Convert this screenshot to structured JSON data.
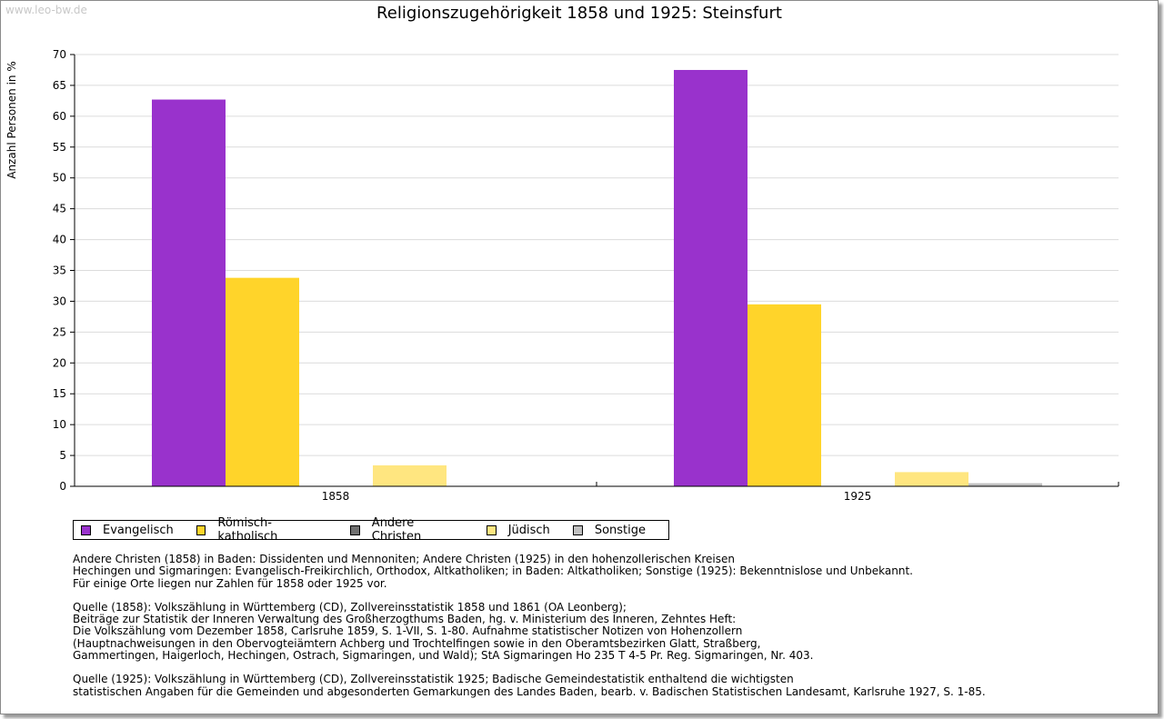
{
  "watermark": "www.leo-bw.de",
  "chart_data": {
    "type": "bar",
    "title": "Religionszugehörigkeit 1858 und 1925: Steinsfurt",
    "ylabel": "Anzahl Personen in %",
    "xlabel": "",
    "ylim": [
      0,
      70
    ],
    "yticks": [
      0,
      5,
      10,
      15,
      20,
      25,
      30,
      35,
      40,
      45,
      50,
      55,
      60,
      65,
      70
    ],
    "grid": true,
    "categories": [
      "1858",
      "1925"
    ],
    "series": [
      {
        "name": "Evangelisch",
        "color": "#9932cc",
        "values": [
          62.7,
          67.5
        ]
      },
      {
        "name": "Römisch-katholisch",
        "color": "#ffd42a",
        "values": [
          33.8,
          29.5
        ]
      },
      {
        "name": "Andere Christen",
        "color": "#707070",
        "values": [
          0,
          0
        ]
      },
      {
        "name": "Jüdisch",
        "color": "#ffe680",
        "values": [
          3.4,
          2.3
        ]
      },
      {
        "name": "Sonstige",
        "color": "#c0c0c0",
        "values": [
          0,
          0.5
        ]
      }
    ],
    "legend_position": "bottom"
  },
  "notes": {
    "paragraphs": [
      [
        "Andere Christen (1858) in Baden: Dissidenten und Mennoniten; Andere Christen (1925) in den hohenzollerischen Kreisen",
        "Hechingen und Sigmaringen: Evangelisch-Freikirchlich, Orthodox, Altkatholiken; in Baden: Altkatholiken; Sonstige (1925): Bekenntnislose und Unbekannt.",
        "Für einige Orte liegen nur Zahlen für 1858 oder 1925 vor."
      ],
      [
        "Quelle (1858): Volkszählung in Württemberg (CD), Zollvereinsstatistik 1858 und 1861 (OA Leonberg);",
        "Beiträge zur Statistik der Inneren Verwaltung des Großherzogthums Baden, hg. v. Ministerium des Inneren, Zehntes Heft:",
        "Die Volkszählung vom Dezember 1858, Carlsruhe 1859, S. 1-VII, S. 1-80. Aufnahme statistischer Notizen von Hohenzollern",
        "(Hauptnachweisungen in den Obervogteiämtern Achberg und Trochtelfingen sowie in den Oberamtsbezirken Glatt, Straßberg,",
        "Gammertingen, Haigerloch, Hechingen, Ostrach, Sigmaringen, und Wald); StA Sigmaringen Ho 235 T 4-5 Pr. Reg. Sigmaringen, Nr. 403."
      ],
      [
        "Quelle (1925): Volkszählung in Württemberg (CD), Zollvereinsstatistik 1925; Badische Gemeindestatistik enthaltend die wichtigsten",
        "statistischen Angaben für die Gemeinden und abgesonderten Gemarkungen des Landes Baden, bearb. v. Badischen Statistischen Landesamt, Karlsruhe 1927, S. 1-85."
      ]
    ]
  }
}
